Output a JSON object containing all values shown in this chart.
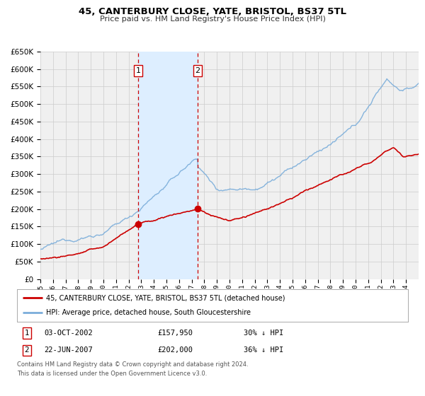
{
  "title": "45, CANTERBURY CLOSE, YATE, BRISTOL, BS37 5TL",
  "subtitle": "Price paid vs. HM Land Registry's House Price Index (HPI)",
  "legend_line1": "45, CANTERBURY CLOSE, YATE, BRISTOL, BS37 5TL (detached house)",
  "legend_line2": "HPI: Average price, detached house, South Gloucestershire",
  "footnote1": "Contains HM Land Registry data © Crown copyright and database right 2024.",
  "footnote2": "This data is licensed under the Open Government Licence v3.0.",
  "sale1_label": "1",
  "sale1_date": "03-OCT-2002",
  "sale1_price": "£157,950",
  "sale1_hpi": "30% ↓ HPI",
  "sale2_label": "2",
  "sale2_date": "22-JUN-2007",
  "sale2_price": "£202,000",
  "sale2_hpi": "36% ↓ HPI",
  "sale1_year": 2002.75,
  "sale2_year": 2007.47,
  "sale1_price_val": 157950,
  "sale2_price_val": 202000,
  "red_color": "#cc0000",
  "blue_color": "#7aadda",
  "shading_color": "#ddeeff",
  "grid_color": "#cccccc",
  "background_color": "#f0f0f0",
  "ylim": [
    0,
    650000
  ],
  "xlim_start": 1995,
  "xlim_end": 2025
}
